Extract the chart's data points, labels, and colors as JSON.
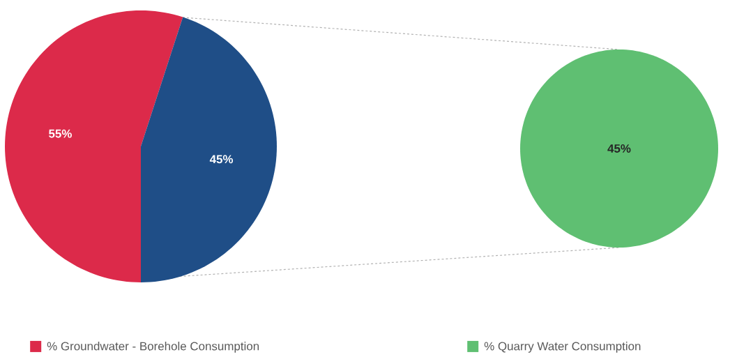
{
  "chart_data": [
    {
      "type": "pie",
      "categories": [
        "% Groundwater - Borehole Consumption",
        null
      ],
      "values": [
        55,
        45
      ],
      "colors": [
        "#dc2a4a",
        "#1f4e87"
      ],
      "data_labels": true,
      "value_labels": [
        "55%",
        "45%"
      ],
      "legend": "bottom left"
    },
    {
      "type": "pie",
      "categories": [
        "% Quarry Water Consumption"
      ],
      "values": [
        45
      ],
      "colors": [
        "#5fbf72"
      ],
      "data_labels": true,
      "value_labels": [
        "45%"
      ],
      "legend": "bottom left"
    }
  ]
}
